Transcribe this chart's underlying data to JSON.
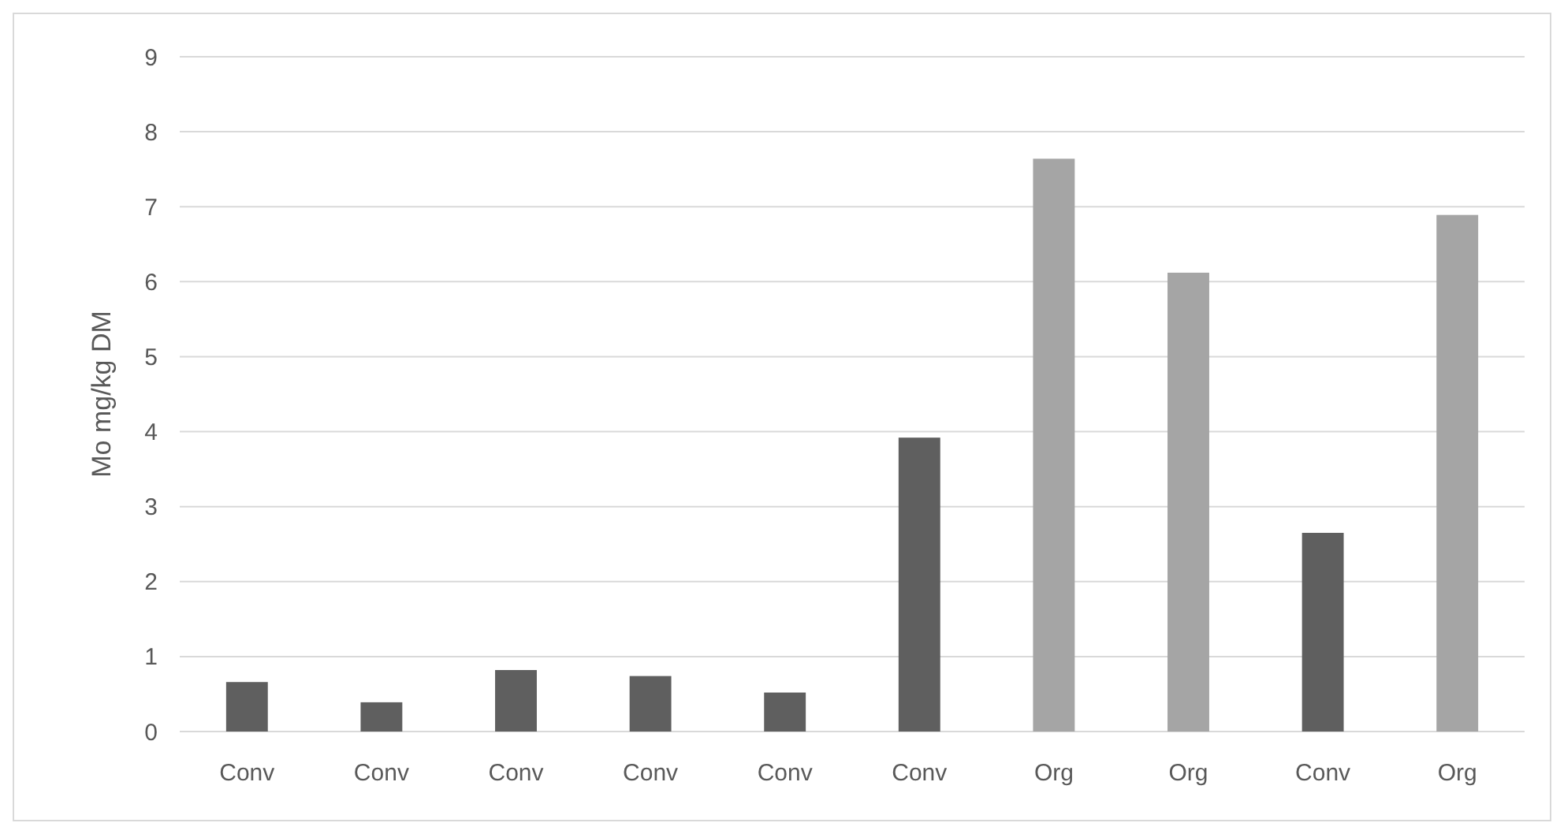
{
  "chart_data": {
    "type": "bar",
    "ylabel": "Mo mg/kg DM",
    "categories": [
      "Conv",
      "Conv",
      "Conv",
      "Conv",
      "Conv",
      "Conv",
      "Org",
      "Org",
      "Conv",
      "Org"
    ],
    "values": [
      0.66,
      0.39,
      0.82,
      0.74,
      0.52,
      3.92,
      7.64,
      6.12,
      2.65,
      6.89
    ],
    "colors": [
      "#5f5f5f",
      "#5f5f5f",
      "#5f5f5f",
      "#5f5f5f",
      "#5f5f5f",
      "#5f5f5f",
      "#a5a5a5",
      "#a5a5a5",
      "#5f5f5f",
      "#a5a5a5"
    ],
    "ylim": [
      0,
      9
    ],
    "yticks": [
      0,
      1,
      2,
      3,
      4,
      5,
      6,
      7,
      8,
      9
    ],
    "grid": "y"
  }
}
